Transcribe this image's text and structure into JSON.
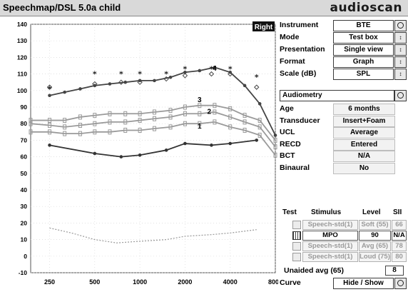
{
  "window": {
    "title": "Speechmap/DSL 5.0a child",
    "brand": "audioscan"
  },
  "chart_data": {
    "type": "line",
    "ear_label": "Right",
    "x_ticks": [
      250,
      500,
      1000,
      2000,
      4000,
      8000
    ],
    "y_ticks": [
      140,
      130,
      120,
      110,
      100,
      90,
      80,
      70,
      60,
      50,
      40,
      30,
      20,
      10,
      0,
      -10
    ],
    "xlim": [
      187,
      8000
    ],
    "ylim": [
      -10,
      140
    ],
    "grid": true,
    "series": [
      {
        "name": "4",
        "color": "#444444",
        "style": "solid",
        "markers": "dot",
        "x": [
          250,
          315,
          400,
          500,
          630,
          800,
          1000,
          1250,
          1600,
          2000,
          2500,
          3150,
          4000,
          5000,
          6300,
          8000
        ],
        "y": [
          97,
          99,
          101,
          103,
          104,
          105,
          106,
          106,
          108,
          111,
          112,
          114,
          111,
          103,
          92,
          73
        ]
      },
      {
        "name": "3",
        "color": "#9a9a9a",
        "style": "solid",
        "markers": "box",
        "x": [
          187,
          250,
          315,
          400,
          500,
          630,
          800,
          1000,
          1250,
          1600,
          2000,
          2500,
          3150,
          4000,
          5000,
          6300,
          8000
        ],
        "y": [
          82,
          82,
          82,
          84,
          85,
          86,
          86,
          86,
          87,
          88,
          90,
          91,
          91,
          89,
          85,
          82,
          70
        ]
      },
      {
        "name": "2",
        "color": "#9a9a9a",
        "style": "solid",
        "markers": "box",
        "x": [
          187,
          250,
          315,
          400,
          500,
          630,
          800,
          1000,
          1250,
          1600,
          2000,
          2500,
          3150,
          4000,
          5000,
          6300,
          8000
        ],
        "y": [
          80,
          79,
          78,
          79,
          80,
          81,
          81,
          82,
          83,
          84,
          86,
          86,
          87,
          84,
          81,
          78,
          66
        ]
      },
      {
        "name": "1",
        "color": "#9a9a9a",
        "style": "solid",
        "markers": "box",
        "x": [
          187,
          250,
          315,
          400,
          500,
          630,
          800,
          1000,
          1250,
          1600,
          2000,
          2500,
          3150,
          4000,
          5000,
          6300,
          8000
        ],
        "y": [
          75,
          75,
          74,
          74,
          75,
          75,
          76,
          76,
          77,
          78,
          80,
          80,
          81,
          78,
          76,
          73,
          61
        ]
      },
      {
        "name": "",
        "color": "#333333",
        "style": "solid",
        "markers": "dot",
        "x": [
          250,
          500,
          750,
          1000,
          1500,
          2000,
          3000,
          4000,
          6000
        ],
        "y": [
          67,
          62,
          60,
          61,
          64,
          68,
          67,
          68,
          70
        ]
      },
      {
        "name": "",
        "color": "#9a9a9a",
        "style": "dotted",
        "markers": "none",
        "x": [
          250,
          350,
          500,
          700,
          1000,
          1500,
          2000,
          3000,
          4000,
          6000
        ],
        "y": [
          17,
          14,
          10,
          8,
          9,
          10,
          12,
          13,
          14,
          16
        ]
      }
    ],
    "asterisks": {
      "x": [
        250,
        500,
        750,
        1000,
        1500,
        2000,
        3000,
        4000,
        6000
      ],
      "y": [
        101,
        110,
        110,
        110,
        110,
        113,
        113,
        113,
        108
      ]
    },
    "diamonds": {
      "x": [
        250,
        500,
        750,
        1000,
        1500,
        2000,
        3000,
        4000,
        6000
      ],
      "y": [
        102,
        104,
        105,
        105,
        107,
        109,
        110,
        110,
        102
      ]
    },
    "curve_labels": [
      {
        "text": "4",
        "x": 3150,
        "y": 112
      },
      {
        "text": "3",
        "x": 2500,
        "y": 93
      },
      {
        "text": "2",
        "x": 2900,
        "y": 86
      },
      {
        "text": "1",
        "x": 2500,
        "y": 77
      }
    ]
  },
  "settings": [
    {
      "label": "Instrument",
      "value": "BTE",
      "control": "button"
    },
    {
      "label": "Mode",
      "value": "Test box",
      "control": "spin"
    },
    {
      "label": "Presentation",
      "value": "Single view",
      "control": "spin"
    },
    {
      "label": "Format",
      "value": "Graph",
      "control": "spin"
    },
    {
      "label": "Scale (dB)",
      "value": "SPL",
      "control": "spin"
    }
  ],
  "audiometry": {
    "label": "Audiometry"
  },
  "audiometry_fields": [
    {
      "label": "Age",
      "value": "6 months"
    },
    {
      "label": "Transducer",
      "value": "Insert+Foam"
    },
    {
      "label": "UCL",
      "value": "Average"
    },
    {
      "label": "RECD",
      "value": "Entered"
    },
    {
      "label": "BCT",
      "value": "N/A"
    },
    {
      "label": "Binaural",
      "value": "No"
    }
  ],
  "test_table": {
    "headers": {
      "test": "Test",
      "stimulus": "Stimulus",
      "level": "Level",
      "sii": "SII"
    },
    "rows": [
      {
        "stimulus": "Speech-std(1)",
        "level": "Soft (55)",
        "sii": "66",
        "active": false
      },
      {
        "stimulus": "MPO",
        "level": "90",
        "sii": "N/A",
        "active": true
      },
      {
        "stimulus": "Speech-std(1)",
        "level": "Avg (65)",
        "sii": "78",
        "active": false
      },
      {
        "stimulus": "Speech-std(1)",
        "level": "Loud (75)",
        "sii": "80",
        "active": false
      }
    ]
  },
  "unaided": {
    "label": "Unaided avg (65)",
    "value": "8"
  },
  "curve": {
    "label": "Curve",
    "value": "Hide / Show"
  }
}
